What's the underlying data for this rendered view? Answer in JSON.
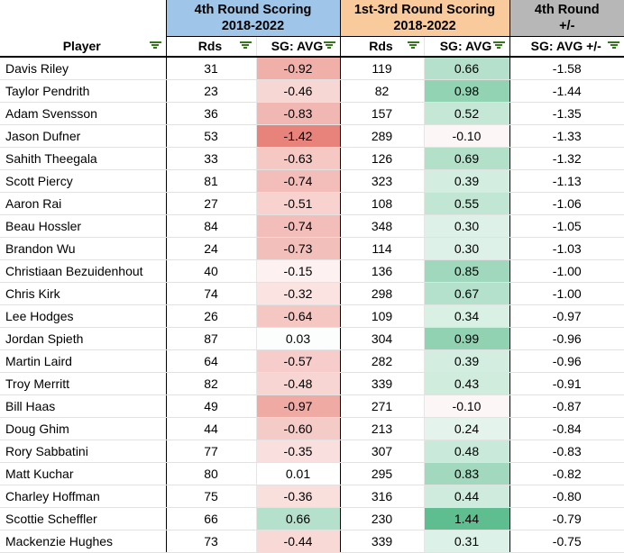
{
  "header_groups": {
    "group1": {
      "line1": "4th Round Scoring",
      "line2": "2018-2022",
      "bg": "#9FC5E8"
    },
    "group2": {
      "line1": "1st-3rd Round Scoring",
      "line2": "2018-2022",
      "bg": "#F9CB9C"
    },
    "group3": {
      "line1": "4th Round",
      "line2": "+/-",
      "bg": "#B7B7B7"
    }
  },
  "column_headers": {
    "player": "Player",
    "rds_4th": "Rds",
    "sg_avg_4th": "SG: AVG",
    "rds_1st3rd": "Rds",
    "sg_avg_1st3rd": "SG: AVG",
    "sg_avg_diff": "SG: AVG +/-"
  },
  "colors": {
    "negative_fill": "#E67C73",
    "positive_fill": "#57BB8A",
    "filter_icon": "#38761D",
    "scale_abs_max": 1.5
  },
  "rows": [
    {
      "player": "Davis Riley",
      "rds_4th": "31",
      "sg_avg_4th": "-0.92",
      "rds_1st3rd": "119",
      "sg_avg_1st3rd": "0.66",
      "sg_avg_diff": "-1.58"
    },
    {
      "player": "Taylor Pendrith",
      "rds_4th": "23",
      "sg_avg_4th": "-0.46",
      "rds_1st3rd": "82",
      "sg_avg_1st3rd": "0.98",
      "sg_avg_diff": "-1.44"
    },
    {
      "player": "Adam Svensson",
      "rds_4th": "36",
      "sg_avg_4th": "-0.83",
      "rds_1st3rd": "157",
      "sg_avg_1st3rd": "0.52",
      "sg_avg_diff": "-1.35"
    },
    {
      "player": "Jason Dufner",
      "rds_4th": "53",
      "sg_avg_4th": "-1.42",
      "rds_1st3rd": "289",
      "sg_avg_1st3rd": "-0.10",
      "sg_avg_diff": "-1.33"
    },
    {
      "player": "Sahith Theegala",
      "rds_4th": "33",
      "sg_avg_4th": "-0.63",
      "rds_1st3rd": "126",
      "sg_avg_1st3rd": "0.69",
      "sg_avg_diff": "-1.32"
    },
    {
      "player": "Scott Piercy",
      "rds_4th": "81",
      "sg_avg_4th": "-0.74",
      "rds_1st3rd": "323",
      "sg_avg_1st3rd": "0.39",
      "sg_avg_diff": "-1.13"
    },
    {
      "player": "Aaron Rai",
      "rds_4th": "27",
      "sg_avg_4th": "-0.51",
      "rds_1st3rd": "108",
      "sg_avg_1st3rd": "0.55",
      "sg_avg_diff": "-1.06"
    },
    {
      "player": "Beau Hossler",
      "rds_4th": "84",
      "sg_avg_4th": "-0.74",
      "rds_1st3rd": "348",
      "sg_avg_1st3rd": "0.30",
      "sg_avg_diff": "-1.05"
    },
    {
      "player": "Brandon Wu",
      "rds_4th": "24",
      "sg_avg_4th": "-0.73",
      "rds_1st3rd": "114",
      "sg_avg_1st3rd": "0.30",
      "sg_avg_diff": "-1.03"
    },
    {
      "player": "Christiaan Bezuidenhout",
      "rds_4th": "40",
      "sg_avg_4th": "-0.15",
      "rds_1st3rd": "136",
      "sg_avg_1st3rd": "0.85",
      "sg_avg_diff": "-1.00"
    },
    {
      "player": "Chris Kirk",
      "rds_4th": "74",
      "sg_avg_4th": "-0.32",
      "rds_1st3rd": "298",
      "sg_avg_1st3rd": "0.67",
      "sg_avg_diff": "-1.00"
    },
    {
      "player": "Lee Hodges",
      "rds_4th": "26",
      "sg_avg_4th": "-0.64",
      "rds_1st3rd": "109",
      "sg_avg_1st3rd": "0.34",
      "sg_avg_diff": "-0.97"
    },
    {
      "player": "Jordan Spieth",
      "rds_4th": "87",
      "sg_avg_4th": "0.03",
      "rds_1st3rd": "304",
      "sg_avg_1st3rd": "0.99",
      "sg_avg_diff": "-0.96"
    },
    {
      "player": "Martin Laird",
      "rds_4th": "64",
      "sg_avg_4th": "-0.57",
      "rds_1st3rd": "282",
      "sg_avg_1st3rd": "0.39",
      "sg_avg_diff": "-0.96"
    },
    {
      "player": "Troy Merritt",
      "rds_4th": "82",
      "sg_avg_4th": "-0.48",
      "rds_1st3rd": "339",
      "sg_avg_1st3rd": "0.43",
      "sg_avg_diff": "-0.91"
    },
    {
      "player": "Bill Haas",
      "rds_4th": "49",
      "sg_avg_4th": "-0.97",
      "rds_1st3rd": "271",
      "sg_avg_1st3rd": "-0.10",
      "sg_avg_diff": "-0.87"
    },
    {
      "player": "Doug Ghim",
      "rds_4th": "44",
      "sg_avg_4th": "-0.60",
      "rds_1st3rd": "213",
      "sg_avg_1st3rd": "0.24",
      "sg_avg_diff": "-0.84"
    },
    {
      "player": "Rory Sabbatini",
      "rds_4th": "77",
      "sg_avg_4th": "-0.35",
      "rds_1st3rd": "307",
      "sg_avg_1st3rd": "0.48",
      "sg_avg_diff": "-0.83"
    },
    {
      "player": "Matt Kuchar",
      "rds_4th": "80",
      "sg_avg_4th": "0.01",
      "rds_1st3rd": "295",
      "sg_avg_1st3rd": "0.83",
      "sg_avg_diff": "-0.82"
    },
    {
      "player": "Charley Hoffman",
      "rds_4th": "75",
      "sg_avg_4th": "-0.36",
      "rds_1st3rd": "316",
      "sg_avg_1st3rd": "0.44",
      "sg_avg_diff": "-0.80"
    },
    {
      "player": "Scottie Scheffler",
      "rds_4th": "66",
      "sg_avg_4th": "0.66",
      "rds_1st3rd": "230",
      "sg_avg_1st3rd": "1.44",
      "sg_avg_diff": "-0.79"
    },
    {
      "player": "Mackenzie Hughes",
      "rds_4th": "73",
      "sg_avg_4th": "-0.44",
      "rds_1st3rd": "339",
      "sg_avg_1st3rd": "0.31",
      "sg_avg_diff": "-0.75"
    }
  ]
}
